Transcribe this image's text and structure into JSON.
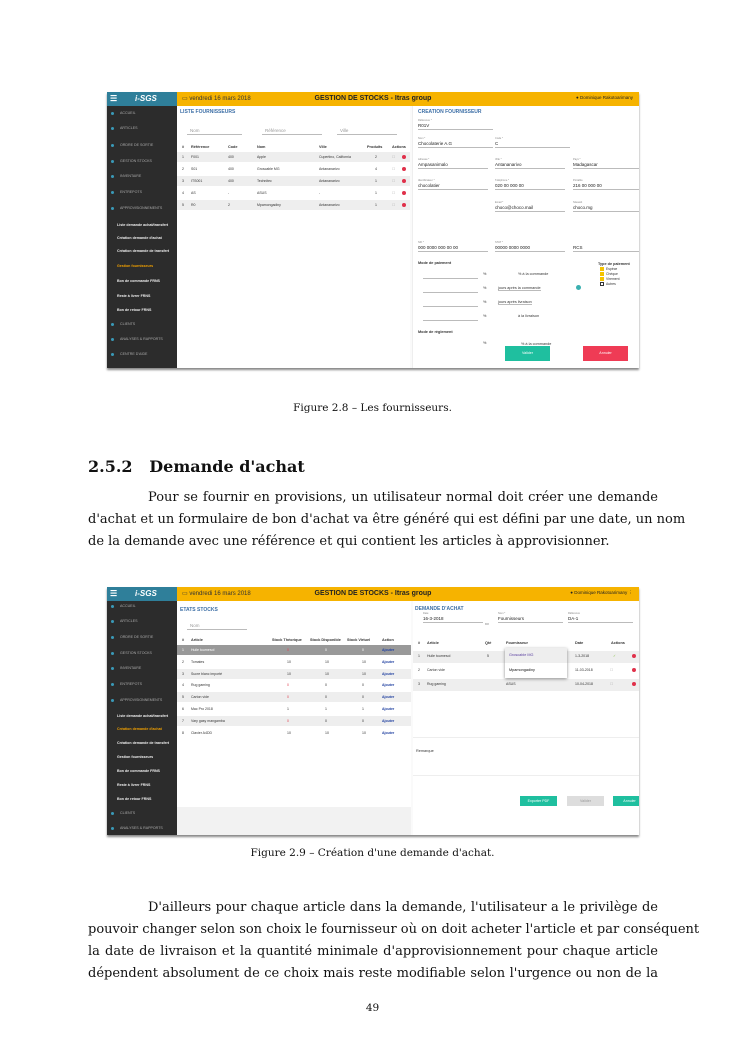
{
  "colors": {
    "header": "#f6b300",
    "sidebar": "#2c2c2c",
    "accent_blue": "#3d6fa6",
    "teal": "#1fbf9f",
    "red": "#ef3b55"
  },
  "shot1": {
    "logo": "i-SGS",
    "date": "vendredi 16 mars 2018",
    "title": "GESTION DE STOCKS - Itras group",
    "user": "Dominique Rakotoarimany",
    "sidebar": [
      {
        "label": "ACCUEIL",
        "type": "main"
      },
      {
        "label": "ARTICLES",
        "type": "main"
      },
      {
        "label": "ORDRE DE SORTIE",
        "type": "main"
      },
      {
        "label": "GESTION STOCKS",
        "type": "main"
      },
      {
        "label": "INVENTAIRE",
        "type": "main"
      },
      {
        "label": "ENTREPOTS",
        "type": "main"
      },
      {
        "label": "APPROVISIONNEMENTS",
        "type": "main"
      },
      {
        "label": "Liste demande achat/transfert",
        "type": "sub"
      },
      {
        "label": "Création demande d'achat",
        "type": "sub"
      },
      {
        "label": "Création demande de transfert",
        "type": "sub"
      },
      {
        "label": "Gestion fournisseurs",
        "type": "sub",
        "active": true
      },
      {
        "label": "Bon de commande FRNS",
        "type": "sub"
      },
      {
        "label": "Reste à livrer FRNS",
        "type": "sub"
      },
      {
        "label": "Bon de retour FRNS",
        "type": "sub"
      },
      {
        "label": "CLIENTS",
        "type": "main"
      },
      {
        "label": "ANALYSES & RAPPORTS",
        "type": "main"
      },
      {
        "label": "CENTRE D'AIDE",
        "type": "main"
      }
    ],
    "list": {
      "title": "LISTE FOURNISSEURS",
      "filters": [
        "Nom",
        "Référence",
        "Ville"
      ],
      "headers": [
        "#",
        "Référence",
        "Code",
        "Nom",
        "Ville",
        "Produits",
        "Actions"
      ],
      "rows": [
        [
          "1",
          "F001",
          "400",
          "Apple",
          "Cupertino, California",
          "2"
        ],
        [
          "2",
          "S01",
          "400",
          "Groscable MG",
          "Antananarivo",
          "4"
        ],
        [
          "3",
          "ITS001",
          "400",
          "Technitec",
          "Antananarivo",
          "1"
        ],
        [
          "4",
          "AS",
          "-",
          "ASUS",
          "-",
          "1"
        ],
        [
          "5",
          "R0",
          "2",
          "Mpamongadiny",
          "Antananarivo",
          "1"
        ]
      ]
    },
    "form": {
      "title": "CREATION FOURNISSEUR",
      "fields": [
        {
          "label": "Référence *",
          "value": "R01V"
        },
        {
          "label": "Nom *",
          "value": "Chocolaterie A.G"
        },
        {
          "label": "Code *",
          "value": "C"
        },
        {
          "label": "Adresse *",
          "value": "Ampasanimalo"
        },
        {
          "label": "Ville *",
          "value": "Antananarivo"
        },
        {
          "label": "Pays *",
          "value": "Madagascar"
        },
        {
          "label": "Identificateur *",
          "value": "chocolatier"
        },
        {
          "label": "Téléphone *",
          "value": "020 00 000 00"
        },
        {
          "label": "Portable",
          "value": "216 00 000 00"
        },
        {
          "label": "Email *",
          "value": "choco@choco.mail"
        },
        {
          "label": "Siteweb",
          "value": "choco.mg"
        },
        {
          "label": "NIF *",
          "value": "000 0000 000 00 00"
        },
        {
          "label": "STAT *",
          "value": "00000 0000 0000"
        },
        {
          "label": "",
          "value": "RCS"
        }
      ],
      "payment_mode_label": "Mode de paiement",
      "percent": "%",
      "payment_lines": [
        "% à la commande",
        "jours après la commande",
        "jours après livraison",
        "à la livraison"
      ],
      "payment_type_label": "Type de paiement",
      "payment_types": [
        {
          "label": "Espèce",
          "checked": true
        },
        {
          "label": "Chèque",
          "checked": true
        },
        {
          "label": "Virement",
          "checked": true
        },
        {
          "label": "Autres",
          "checked": false
        }
      ],
      "settlement_label": "Mode de règlement",
      "settlement_line": "% à la commande",
      "validate": "Valider",
      "cancel": "Annuler"
    }
  },
  "caption1": "Figure 2.8 – Les fournisseurs.",
  "section": {
    "number": "2.5.2",
    "title": "Demande d'achat"
  },
  "paragraph1": [
    "Pour se fournir en provisions, un utilisateur normal doit créer une demande",
    "d'achat et un formulaire de bon d'achat va être généré qui est défini par une date, un nom",
    "de la demande avec une référence et qui contient les articles à approvisionner."
  ],
  "shot2": {
    "logo": "i-SGS",
    "date": "vendredi 16 mars 2018",
    "title": "GESTION DE STOCKS - Itras group",
    "user": "Dominique Rakotoarimany",
    "sidebar": [
      {
        "label": "ACCUEIL",
        "type": "main"
      },
      {
        "label": "ARTICLES",
        "type": "main"
      },
      {
        "label": "ORDRE DE SORTIE",
        "type": "main"
      },
      {
        "label": "GESTION STOCKS",
        "type": "main"
      },
      {
        "label": "INVENTAIRE",
        "type": "main"
      },
      {
        "label": "ENTREPOTS",
        "type": "main"
      },
      {
        "label": "APPROVISIONNEMENTS",
        "type": "main"
      },
      {
        "label": "Liste demande achat/transfert",
        "type": "sub"
      },
      {
        "label": "Création demande d'achat",
        "type": "sub",
        "active": true
      },
      {
        "label": "Création demande de transfert",
        "type": "sub"
      },
      {
        "label": "Gestion fournisseurs",
        "type": "sub"
      },
      {
        "label": "Bon de commande FRNS",
        "type": "sub"
      },
      {
        "label": "Reste à livrer FRNS",
        "type": "sub"
      },
      {
        "label": "Bon de retour FRNS",
        "type": "sub"
      },
      {
        "label": "CLIENTS",
        "type": "main"
      },
      {
        "label": "ANALYSES & RAPPORTS",
        "type": "main"
      }
    ],
    "stock": {
      "title": "ETATS STOCKS",
      "filter": "Nom",
      "headers": [
        "#",
        "Article",
        "Stock Théorique",
        "Stock Disponible",
        "Stock Virtuel",
        "Action"
      ],
      "rows": [
        [
          "1",
          "Huile tournesol",
          "0",
          "0",
          "0",
          "Ajouter"
        ],
        [
          "2",
          "Tomates",
          "10",
          "10",
          "10",
          "Ajouter"
        ],
        [
          "3",
          "Sucre blanc importé",
          "10",
          "10",
          "10",
          "Ajouter"
        ],
        [
          "4",
          "Rug gaming",
          "0",
          "0",
          "0",
          "Ajouter"
        ],
        [
          "5",
          "Carton vide",
          "0",
          "0",
          "0",
          "Ajouter"
        ],
        [
          "6",
          "Mac Pro 2018",
          "1",
          "1",
          "1",
          "Ajouter"
        ],
        [
          "7",
          "Vary gasy mangamba",
          "0",
          "0",
          "0",
          "Ajouter"
        ],
        [
          "8",
          "Clavier A4DD",
          "10",
          "10",
          "10",
          "Ajouter"
        ]
      ]
    },
    "request": {
      "title": "DEMANDE D'ACHAT",
      "fields": [
        {
          "label": "Date",
          "value": "16-3-2018"
        },
        {
          "label": "Nom *",
          "value": "Fournisseurs"
        },
        {
          "label": "Référence",
          "value": "DA-1"
        }
      ],
      "headers": [
        "#",
        "Article",
        "Qté",
        "Fournisseur",
        "Date",
        "Actions"
      ],
      "rows": [
        [
          "1",
          "Huile tournesol",
          "5",
          "",
          "1-3-2018"
        ],
        [
          "2",
          "Carton vide",
          "",
          "",
          "11-03-2018"
        ],
        [
          "3",
          "Rug gaming",
          "",
          "ASUS",
          "10-04-2018"
        ]
      ],
      "dropdown": [
        "Groscable MG",
        "Mpamongadiny"
      ],
      "remark_label": "Remarque",
      "export": "Exporter PDF",
      "validate": "Valider",
      "cancel": "Annuler"
    }
  },
  "caption2": "Figure 2.9 – Création d'une demande d'achat.",
  "paragraph2": [
    "D'ailleurs pour chaque article dans la demande, l'utilisateur a le privilège de",
    "pouvoir changer selon son choix le fournisseur où on doit acheter l'article et par conséquent",
    "la date de livraison et la quantité minimale d'approvisionnement pour chaque article",
    "dépendent absolument de ce choix mais reste modifiable selon l'urgence ou non de la"
  ],
  "page_number": "49"
}
